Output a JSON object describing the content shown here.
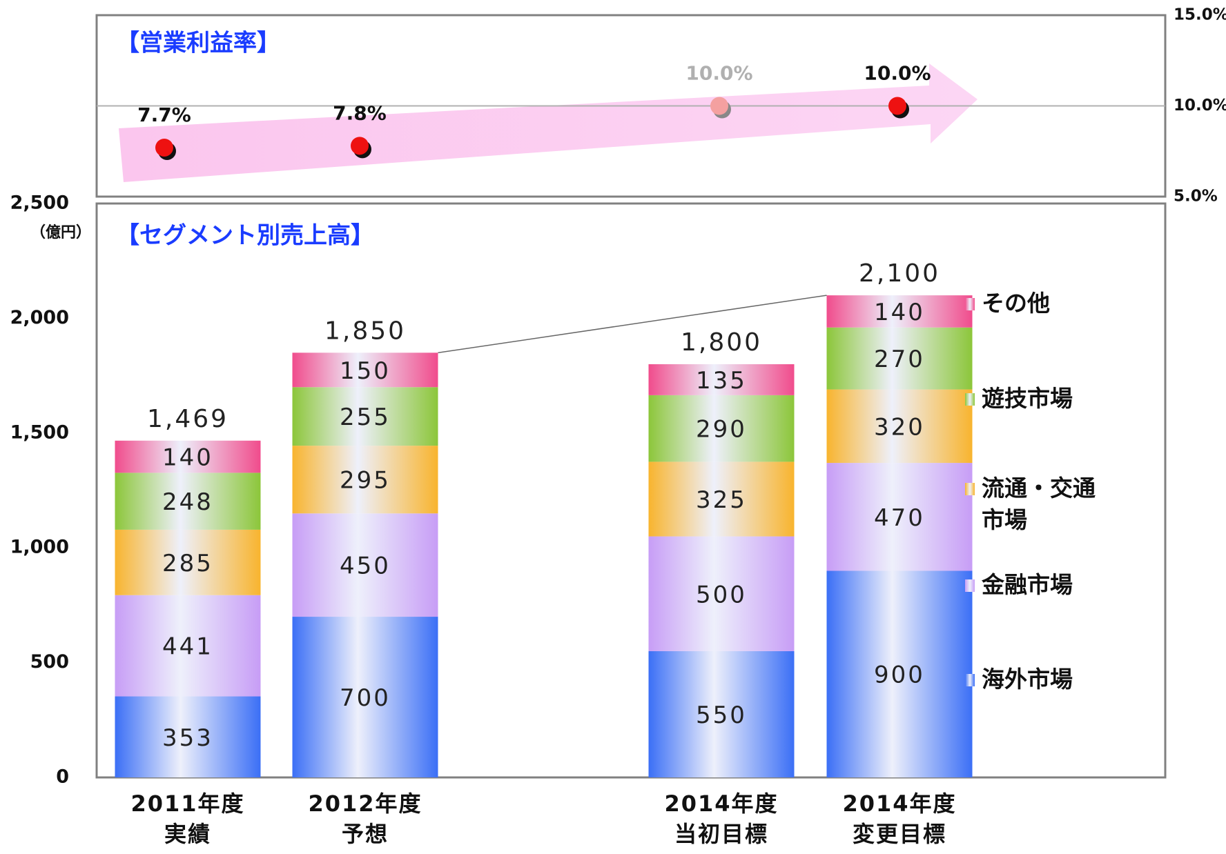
{
  "chart_data": [
    {
      "type": "scatter",
      "title": "【営業利益率】",
      "series": [
        {
          "name": "営業利益率",
          "axis": "y2",
          "values": [
            7.7,
            7.8,
            10.0,
            10.0
          ],
          "value_labels": [
            "7.7%",
            "7.8%",
            "10.0%",
            "10.0%"
          ],
          "point_colors": [
            "#ee1111",
            "#ee1111",
            "#f4a0a0",
            "#ee1111"
          ],
          "label_colors": [
            "#111111",
            "#111111",
            "#b0b0b0",
            "#111111"
          ]
        }
      ],
      "y2lim": [
        5,
        15
      ],
      "y2ticks": [
        {
          "value": 5,
          "label": "5.0%"
        },
        {
          "value": 10,
          "label": "10.0%"
        },
        {
          "value": 15,
          "label": "15.0%"
        }
      ],
      "grid": true
    },
    {
      "type": "stacked_bar",
      "title": "【セグメント別売上高】",
      "ylabel": "（億円）",
      "categories": [
        [
          "2011年度",
          "実績"
        ],
        [
          "2012年度",
          "予想"
        ],
        [
          "2014年度",
          "当初目標"
        ],
        [
          "2014年度",
          "変更目標"
        ]
      ],
      "series": [
        {
          "name": "海外市場",
          "color": "#3b6ff6",
          "values": [
            353,
            700,
            550,
            900
          ]
        },
        {
          "name": "金融市場",
          "color": "#c79df6",
          "values": [
            441,
            450,
            500,
            470
          ]
        },
        {
          "name": "流通・交通市場",
          "color": "#f8b42e",
          "values": [
            285,
            295,
            325,
            320
          ]
        },
        {
          "name": "遊技市場",
          "color": "#8cc63a",
          "values": [
            248,
            255,
            290,
            270
          ]
        },
        {
          "name": "その他",
          "color": "#f04c8c",
          "values": [
            140,
            150,
            135,
            140
          ]
        }
      ],
      "totals": [
        1469,
        1850,
        1800,
        2100
      ],
      "total_labels": [
        "1,469",
        "1,850",
        "1,800",
        "2,100"
      ],
      "ylim": [
        0,
        2500
      ],
      "yticks": [
        0,
        500,
        {
          "value": 1000,
          "label": "1,000"
        },
        {
          "value": 1500,
          "label": "1,500"
        },
        {
          "value": 2000,
          "label": "2,000"
        },
        {
          "value": 2500,
          "label": "2,500"
        }
      ]
    }
  ]
}
